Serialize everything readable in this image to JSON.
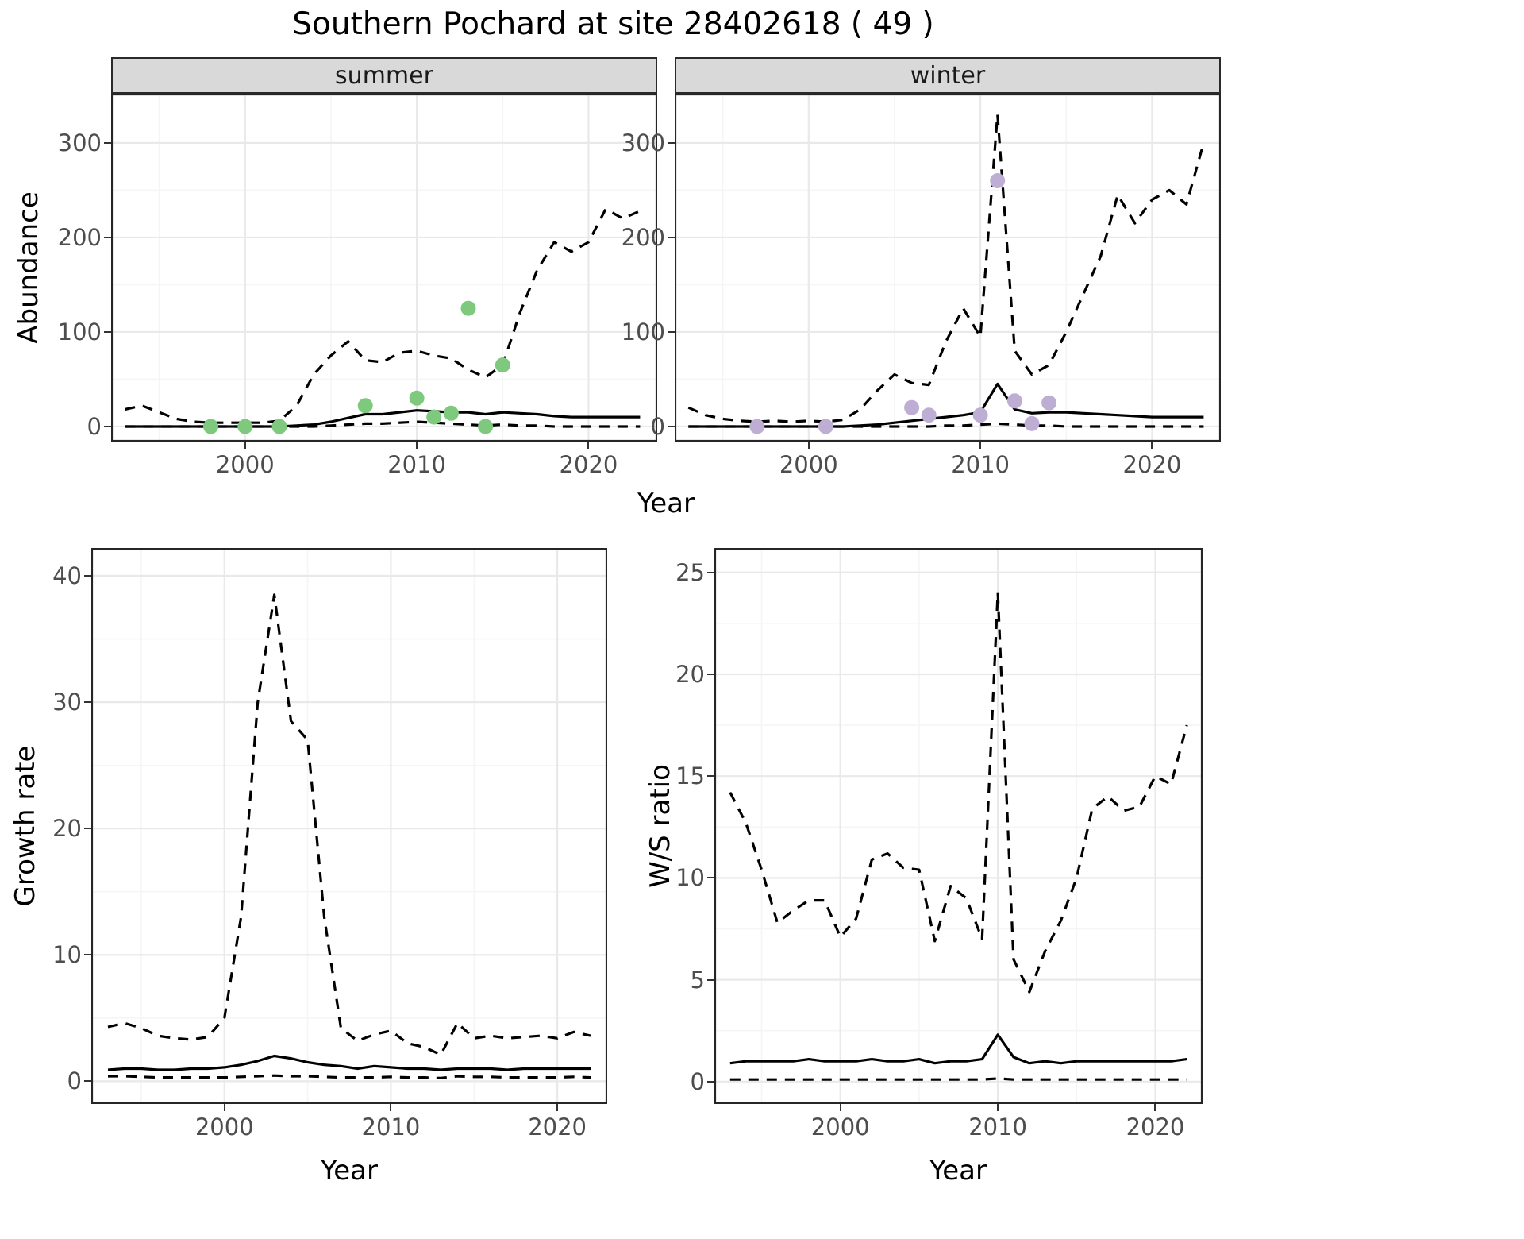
{
  "title": "Southern Pochard at site 28402618 ( 49 )",
  "labels": {
    "abundance": "Abundance",
    "year": "Year",
    "growth_rate": "Growth rate",
    "ws_ratio": "W/S ratio"
  },
  "chart_data": [
    {
      "id": "summer",
      "type": "line",
      "facet_label": "summer",
      "xlabel": "Year",
      "ylabel": "Abundance",
      "xlim": [
        1992.2,
        2024
      ],
      "ylim": [
        -16,
        352
      ],
      "xticks": [
        2000,
        2010,
        2020
      ],
      "yticks": [
        0,
        100,
        200,
        300
      ],
      "xticks_minor": [
        1995,
        2005,
        2015
      ],
      "yticks_minor": [
        50,
        150,
        250,
        350
      ],
      "grid": true,
      "legend": "none",
      "x": [
        1993,
        1994,
        1995,
        1996,
        1997,
        1998,
        1999,
        2000,
        2001,
        2002,
        2003,
        2004,
        2005,
        2006,
        2007,
        2008,
        2009,
        2010,
        2011,
        2012,
        2013,
        2014,
        2015,
        2016,
        2017,
        2018,
        2019,
        2020,
        2021,
        2022,
        2023
      ],
      "series": [
        {
          "name": "median",
          "style": "solid",
          "color": "#000000",
          "values": [
            0,
            0,
            0,
            0,
            0,
            0,
            0,
            0,
            0,
            0,
            1,
            2,
            5,
            9,
            13,
            13,
            15,
            17,
            16,
            15,
            15,
            13,
            15,
            14,
            13,
            11,
            10,
            10,
            10,
            10,
            10
          ]
        },
        {
          "name": "upper_ci",
          "style": "dashed",
          "color": "#000000",
          "values": [
            18,
            22,
            15,
            8,
            5,
            4,
            4,
            4,
            4,
            6,
            22,
            55,
            75,
            90,
            70,
            68,
            78,
            80,
            75,
            72,
            60,
            52,
            65,
            120,
            165,
            195,
            185,
            195,
            230,
            220,
            228
          ]
        },
        {
          "name": "lower_ci",
          "style": "dashed",
          "color": "#000000",
          "values": [
            0,
            0,
            0,
            0,
            0,
            0,
            0,
            0,
            0,
            0,
            0,
            0,
            1,
            2,
            3,
            3,
            4,
            5,
            4,
            3,
            2,
            1,
            2,
            1,
            1,
            0,
            0,
            0,
            0,
            0,
            0
          ]
        }
      ],
      "points": {
        "name": "observed-count",
        "color": "#7FC97F",
        "x": [
          1998,
          2000,
          2002,
          2007,
          2010,
          2011,
          2012,
          2013,
          2014,
          2015
        ],
        "y": [
          0,
          0,
          0,
          22,
          30,
          10,
          14,
          125,
          0,
          65
        ]
      }
    },
    {
      "id": "winter",
      "type": "line",
      "facet_label": "winter",
      "xlabel": "Year",
      "ylabel": "Abundance",
      "xlim": [
        1992.2,
        2024
      ],
      "ylim": [
        -16,
        352
      ],
      "xticks": [
        2000,
        2010,
        2020
      ],
      "yticks": [
        0,
        100,
        200,
        300
      ],
      "xticks_minor": [
        1995,
        2005,
        2015
      ],
      "yticks_minor": [
        50,
        150,
        250,
        350
      ],
      "grid": true,
      "legend": "none",
      "x": [
        1993,
        1994,
        1995,
        1996,
        1997,
        1998,
        1999,
        2000,
        2001,
        2002,
        2003,
        2004,
        2005,
        2006,
        2007,
        2008,
        2009,
        2010,
        2011,
        2012,
        2013,
        2014,
        2015,
        2016,
        2017,
        2018,
        2019,
        2020,
        2021,
        2022,
        2023
      ],
      "series": [
        {
          "name": "median",
          "style": "solid",
          "color": "#000000",
          "values": [
            0,
            0,
            0,
            0,
            0,
            0,
            0,
            0,
            0,
            0,
            1,
            2,
            4,
            6,
            8,
            10,
            12,
            15,
            45,
            18,
            14,
            15,
            15,
            14,
            13,
            12,
            11,
            10,
            10,
            10,
            10
          ]
        },
        {
          "name": "upper_ci",
          "style": "dashed",
          "color": "#000000",
          "values": [
            20,
            12,
            8,
            6,
            5,
            6,
            5,
            6,
            5,
            7,
            18,
            38,
            55,
            46,
            44,
            90,
            125,
            95,
            330,
            80,
            55,
            65,
            100,
            140,
            180,
            245,
            215,
            240,
            250,
            235,
            300
          ]
        },
        {
          "name": "lower_ci",
          "style": "dashed",
          "color": "#000000",
          "values": [
            0,
            0,
            0,
            0,
            0,
            0,
            0,
            0,
            0,
            0,
            0,
            0,
            0,
            0,
            0,
            1,
            1,
            2,
            3,
            2,
            1,
            1,
            0,
            0,
            0,
            0,
            0,
            0,
            0,
            0,
            0
          ]
        }
      ],
      "points": {
        "name": "observed-count",
        "color": "#BEAED4",
        "x": [
          1997,
          2001,
          2006,
          2007,
          2010,
          2011,
          2012,
          2013,
          2014
        ],
        "y": [
          0,
          0,
          20,
          12,
          12,
          260,
          27,
          3,
          25
        ]
      }
    },
    {
      "id": "growth",
      "type": "line",
      "facet_label": "",
      "xlabel": "Year",
      "ylabel": "Growth rate",
      "xlim": [
        1992,
        2023
      ],
      "ylim": [
        -1.8,
        42.2
      ],
      "xticks": [
        2000,
        2010,
        2020
      ],
      "yticks": [
        0,
        10,
        20,
        30,
        40
      ],
      "xticks_minor": [
        1995,
        2005,
        2015
      ],
      "yticks_minor": [
        5,
        15,
        25,
        35
      ],
      "grid": true,
      "legend": "none",
      "x": [
        1993,
        1994,
        1995,
        1996,
        1997,
        1998,
        1999,
        2000,
        2001,
        2002,
        2003,
        2004,
        2005,
        2006,
        2007,
        2008,
        2009,
        2010,
        2011,
        2012,
        2013,
        2014,
        2015,
        2016,
        2017,
        2018,
        2019,
        2020,
        2021,
        2022
      ],
      "series": [
        {
          "name": "median",
          "style": "solid",
          "color": "#000000",
          "values": [
            0.9,
            1.0,
            1.0,
            0.9,
            0.9,
            1.0,
            1.0,
            1.1,
            1.3,
            1.6,
            2.0,
            1.8,
            1.5,
            1.3,
            1.2,
            1.0,
            1.2,
            1.1,
            1.0,
            1.0,
            0.9,
            1.0,
            1.0,
            1.0,
            0.9,
            1.0,
            1.0,
            1.0,
            1.0,
            1.0
          ]
        },
        {
          "name": "upper_ci",
          "style": "dashed",
          "color": "#000000",
          "values": [
            4.3,
            4.6,
            4.2,
            3.6,
            3.4,
            3.3,
            3.5,
            5.0,
            13.0,
            30.0,
            38.5,
            28.5,
            27.0,
            13.0,
            4.2,
            3.2,
            3.7,
            4.0,
            3.0,
            2.7,
            2.1,
            4.6,
            3.4,
            3.6,
            3.4,
            3.5,
            3.6,
            3.4,
            3.9,
            3.6
          ]
        },
        {
          "name": "lower_ci",
          "style": "dashed",
          "color": "#000000",
          "values": [
            0.4,
            0.4,
            0.35,
            0.3,
            0.3,
            0.3,
            0.3,
            0.3,
            0.35,
            0.4,
            0.45,
            0.4,
            0.4,
            0.35,
            0.3,
            0.3,
            0.3,
            0.35,
            0.3,
            0.3,
            0.25,
            0.4,
            0.35,
            0.35,
            0.3,
            0.3,
            0.3,
            0.3,
            0.35,
            0.3
          ]
        }
      ]
    },
    {
      "id": "ws",
      "type": "line",
      "facet_label": "",
      "xlabel": "Year",
      "ylabel": "W/S ratio",
      "xlim": [
        1992,
        2023
      ],
      "ylim": [
        -1.1,
        26.2
      ],
      "xticks": [
        2000,
        2010,
        2020
      ],
      "yticks": [
        0,
        5,
        10,
        15,
        20,
        25
      ],
      "xticks_minor": [
        1995,
        2005,
        2015
      ],
      "yticks_minor": [
        2.5,
        7.5,
        12.5,
        17.5,
        22.5
      ],
      "grid": true,
      "legend": "none",
      "x": [
        1993,
        1994,
        1995,
        1996,
        1997,
        1998,
        1999,
        2000,
        2001,
        2002,
        2003,
        2004,
        2005,
        2006,
        2007,
        2008,
        2009,
        2010,
        2011,
        2012,
        2013,
        2014,
        2015,
        2016,
        2017,
        2018,
        2019,
        2020,
        2021,
        2022
      ],
      "series": [
        {
          "name": "median",
          "style": "solid",
          "color": "#000000",
          "values": [
            0.9,
            1.0,
            1.0,
            1.0,
            1.0,
            1.1,
            1.0,
            1.0,
            1.0,
            1.1,
            1.0,
            1.0,
            1.1,
            0.9,
            1.0,
            1.0,
            1.1,
            2.3,
            1.2,
            0.9,
            1.0,
            0.9,
            1.0,
            1.0,
            1.0,
            1.0,
            1.0,
            1.0,
            1.0,
            1.1
          ]
        },
        {
          "name": "upper_ci",
          "style": "dashed",
          "color": "#000000",
          "values": [
            14.2,
            12.7,
            10.4,
            7.8,
            8.4,
            8.9,
            8.9,
            7.1,
            8.0,
            10.9,
            11.2,
            10.5,
            10.4,
            6.9,
            9.6,
            9.0,
            7.0,
            24.0,
            6.0,
            4.4,
            6.4,
            7.9,
            10.0,
            13.4,
            14.0,
            13.3,
            13.5,
            15.0,
            14.6,
            17.5
          ]
        },
        {
          "name": "lower_ci",
          "style": "dashed",
          "color": "#000000",
          "values": [
            0.1,
            0.1,
            0.1,
            0.1,
            0.1,
            0.1,
            0.1,
            0.1,
            0.1,
            0.1,
            0.1,
            0.1,
            0.1,
            0.1,
            0.1,
            0.1,
            0.1,
            0.15,
            0.1,
            0.1,
            0.1,
            0.1,
            0.1,
            0.1,
            0.1,
            0.1,
            0.1,
            0.1,
            0.1,
            0.1
          ]
        }
      ]
    }
  ]
}
